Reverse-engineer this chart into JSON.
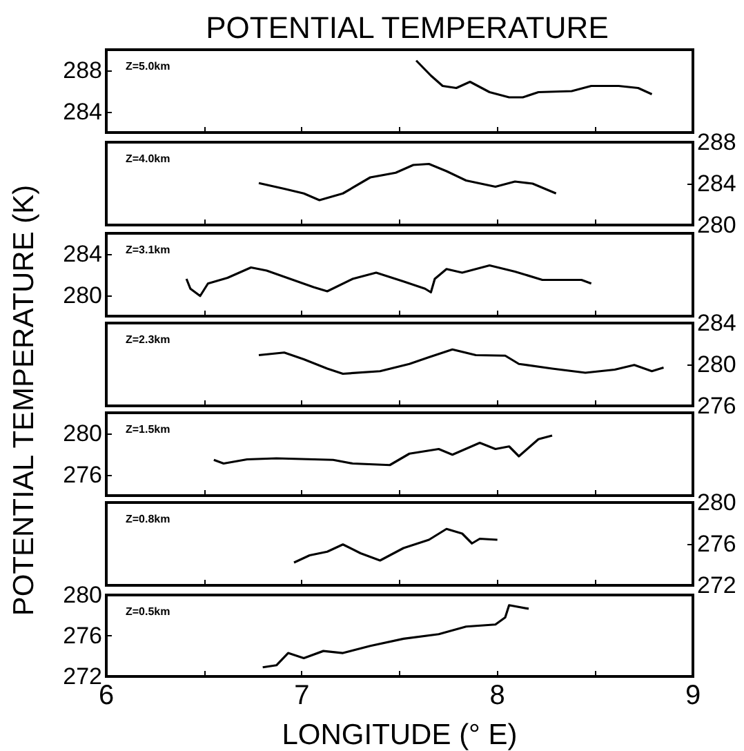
{
  "chart_data": [
    {
      "type": "line",
      "title": "POTENTIAL TEMPERATURE",
      "annotations": [
        "Z=5.0km"
      ],
      "xlim": [
        6,
        9
      ],
      "xticks": [
        6,
        {
          "value": 6.5,
          "label": null
        },
        7,
        {
          "value": 7.5,
          "label": null
        },
        8,
        {
          "value": 8.5,
          "label": null
        },
        9
      ],
      "ylim": [
        282,
        290
      ],
      "yticks": [
        284,
        288
      ],
      "tick_labels": "y",
      "series": [
        {
          "color": "#000000",
          "x": [
            7.585,
            7.66,
            7.72,
            7.79,
            7.86,
            7.96,
            8.06,
            8.13,
            8.21,
            8.38,
            8.48,
            8.62,
            8.72,
            8.79
          ],
          "values": [
            288.95,
            287.5,
            286.5,
            286.3,
            286.9,
            285.9,
            285.4,
            285.4,
            285.9,
            286.0,
            286.5,
            286.5,
            286.3,
            285.7
          ]
        }
      ]
    },
    {
      "type": "line",
      "annotations": [
        "Z=4.0km"
      ],
      "xlim": [
        6,
        9
      ],
      "xticks": [
        6,
        {
          "value": 6.5,
          "label": null
        },
        7,
        {
          "value": 7.5,
          "label": null
        },
        8,
        {
          "value": 8.5,
          "label": null
        },
        9
      ],
      "y2lim": [
        280,
        288
      ],
      "y2ticks": [
        280,
        284,
        288
      ],
      "tick_labels": "y",
      "series": [
        {
          "color": "#000000",
          "axis": "y2",
          "x": [
            6.78,
            6.91,
            7.01,
            7.09,
            7.21,
            7.35,
            7.48,
            7.57,
            7.65,
            7.74,
            7.84,
            7.99,
            8.09,
            8.18,
            8.3
          ],
          "values": [
            284.05,
            283.5,
            283.05,
            282.4,
            283.05,
            284.6,
            285.05,
            285.8,
            285.9,
            285.2,
            284.3,
            283.7,
            284.2,
            284.0,
            283.05
          ]
        }
      ]
    },
    {
      "type": "line",
      "annotations": [
        "Z=3.1km"
      ],
      "xlim": [
        6,
        9
      ],
      "xticks": [
        6,
        {
          "value": 6.5,
          "label": null
        },
        7,
        {
          "value": 7.5,
          "label": null
        },
        8,
        {
          "value": 8.5,
          "label": null
        },
        9
      ],
      "ylim": [
        278,
        286
      ],
      "yticks": [
        280,
        284
      ],
      "tick_labels": "y",
      "series": [
        {
          "color": "#000000",
          "x": [
            6.41,
            6.43,
            6.48,
            6.52,
            6.62,
            6.74,
            6.82,
            6.94,
            7.06,
            7.13,
            7.26,
            7.38,
            7.52,
            7.63,
            7.66,
            7.68,
            7.74,
            7.82,
            7.96,
            8.09,
            8.23,
            8.43,
            8.48
          ],
          "values": [
            281.6,
            280.65,
            279.95,
            281.15,
            281.7,
            282.7,
            282.4,
            281.6,
            280.8,
            280.4,
            281.6,
            282.2,
            281.35,
            280.65,
            280.3,
            281.6,
            282.55,
            282.2,
            282.9,
            282.3,
            281.5,
            281.5,
            281.15
          ]
        }
      ]
    },
    {
      "type": "line",
      "ylabel": "POTENTIAL TEMPERATURE (K)",
      "annotations": [
        "Z=2.3km"
      ],
      "xlim": [
        6,
        9
      ],
      "xticks": [
        6,
        {
          "value": 6.5,
          "label": null
        },
        7,
        {
          "value": 7.5,
          "label": null
        },
        8,
        {
          "value": 8.5,
          "label": null
        },
        9
      ],
      "y2lim": [
        276,
        284
      ],
      "y2ticks": [
        276,
        280,
        284
      ],
      "tick_labels": "y",
      "series": [
        {
          "color": "#000000",
          "axis": "y2",
          "x": [
            6.78,
            6.91,
            7.01,
            7.13,
            7.21,
            7.4,
            7.55,
            7.65,
            7.77,
            7.89,
            8.04,
            8.11,
            8.28,
            8.45,
            8.6,
            8.7,
            8.79,
            8.85
          ],
          "values": [
            280.9,
            281.15,
            280.5,
            279.6,
            279.1,
            279.35,
            280.05,
            280.7,
            281.45,
            280.9,
            280.85,
            280.05,
            279.6,
            279.2,
            279.5,
            279.95,
            279.35,
            279.7
          ]
        }
      ]
    },
    {
      "type": "line",
      "annotations": [
        "Z=1.5km"
      ],
      "xlim": [
        6,
        9
      ],
      "xticks": [
        6,
        {
          "value": 6.5,
          "label": null
        },
        7,
        {
          "value": 7.5,
          "label": null
        },
        8,
        {
          "value": 8.5,
          "label": null
        },
        9
      ],
      "ylim": [
        274,
        282
      ],
      "yticks": [
        276,
        280
      ],
      "tick_labels": "y",
      "series": [
        {
          "color": "#000000",
          "x": [
            6.55,
            6.6,
            6.72,
            6.87,
            7.16,
            7.26,
            7.45,
            7.55,
            7.7,
            7.77,
            7.91,
            7.99,
            8.06,
            8.11,
            8.21,
            8.28
          ],
          "values": [
            277.45,
            277.1,
            277.5,
            277.6,
            277.45,
            277.1,
            276.95,
            278.05,
            278.5,
            277.95,
            279.1,
            278.5,
            278.75,
            277.8,
            279.45,
            279.8
          ]
        }
      ]
    },
    {
      "type": "line",
      "annotations": [
        "Z=0.8km"
      ],
      "xlim": [
        6,
        9
      ],
      "xticks": [
        6,
        {
          "value": 6.5,
          "label": null
        },
        7,
        {
          "value": 7.5,
          "label": null
        },
        8,
        {
          "value": 8.5,
          "label": null
        },
        9
      ],
      "y2lim": [
        272,
        280
      ],
      "y2ticks": [
        272,
        276,
        280
      ],
      "tick_labels": "y",
      "series": [
        {
          "color": "#000000",
          "axis": "y2",
          "x": [
            6.96,
            7.04,
            7.13,
            7.21,
            7.3,
            7.4,
            7.52,
            7.65,
            7.74,
            7.82,
            7.87,
            7.91,
            8.0
          ],
          "values": [
            274.2,
            274.9,
            275.25,
            275.95,
            275.1,
            274.4,
            275.6,
            276.4,
            277.45,
            277.0,
            276.05,
            276.5,
            276.4
          ]
        }
      ]
    },
    {
      "type": "line",
      "xlabel": "LONGITUDE (° E)",
      "annotations": [
        "Z=0.5km"
      ],
      "xlim": [
        6,
        9
      ],
      "xticks": [
        6,
        {
          "value": 6.5,
          "label": null
        },
        7,
        {
          "value": 7.5,
          "label": null
        },
        8,
        {
          "value": 8.5,
          "label": null
        },
        9
      ],
      "ylim": [
        272,
        280
      ],
      "yticks": [
        272,
        276,
        280
      ],
      "series": [
        {
          "color": "#000000",
          "x": [
            6.8,
            6.87,
            6.93,
            7.01,
            7.11,
            7.21,
            7.35,
            7.52,
            7.7,
            7.84,
            7.99,
            8.04,
            8.06,
            8.16
          ],
          "values": [
            272.9,
            273.1,
            274.3,
            273.8,
            274.5,
            274.3,
            275.0,
            275.7,
            276.15,
            276.9,
            277.1,
            277.8,
            279.0,
            278.65
          ]
        }
      ]
    }
  ]
}
